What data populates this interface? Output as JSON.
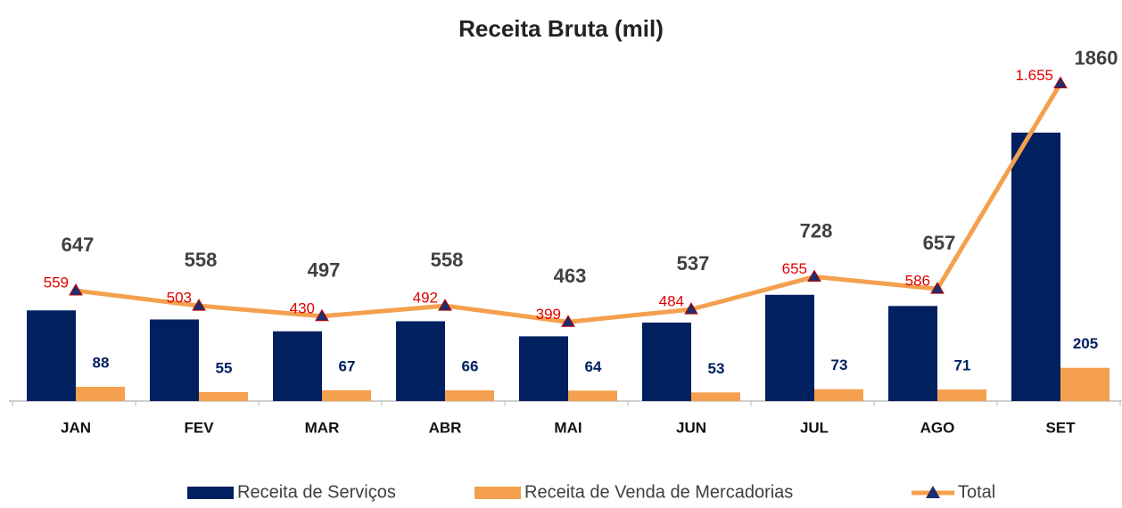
{
  "chart_data": {
    "type": "bar",
    "title": "Receita Bruta (mil)",
    "categories": [
      "JAN",
      "FEV",
      "MAR",
      "ABR",
      "MAI",
      "JUN",
      "JUL",
      "AGO",
      "SET"
    ],
    "series": [
      {
        "name": "Receita de Serviços",
        "color": "#002060",
        "type": "bar",
        "values": [
          559,
          503,
          430,
          492,
          399,
          484,
          655,
          586,
          1655
        ],
        "value_labels": [
          "559",
          "503",
          "430",
          "492",
          "399",
          "484",
          "655",
          "586",
          "1.655"
        ]
      },
      {
        "name": "Receita de Venda de Mercadorias",
        "color": "#f4a04f",
        "type": "bar",
        "values": [
          88,
          55,
          67,
          66,
          64,
          53,
          73,
          71,
          205
        ]
      },
      {
        "name": "Total",
        "color": "#f4a04f",
        "type": "line",
        "axis": "y2",
        "values": [
          647,
          558,
          497,
          558,
          463,
          537,
          728,
          657,
          1860
        ]
      }
    ],
    "ylim": [
      0,
      2000
    ],
    "y2lim": [
      0,
      1900
    ],
    "legend": "bottom"
  }
}
